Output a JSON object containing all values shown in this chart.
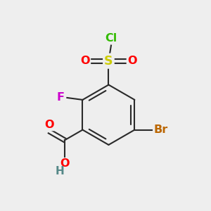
{
  "bg_color": "#eeeeee",
  "bond_color": "#2a2a2a",
  "bond_width": 1.5,
  "colors": {
    "O": "#ff0000",
    "S": "#cccc00",
    "Cl": "#33bb00",
    "F": "#cc00cc",
    "Br": "#bb6600",
    "H": "#558888"
  },
  "font_size": 11.5
}
